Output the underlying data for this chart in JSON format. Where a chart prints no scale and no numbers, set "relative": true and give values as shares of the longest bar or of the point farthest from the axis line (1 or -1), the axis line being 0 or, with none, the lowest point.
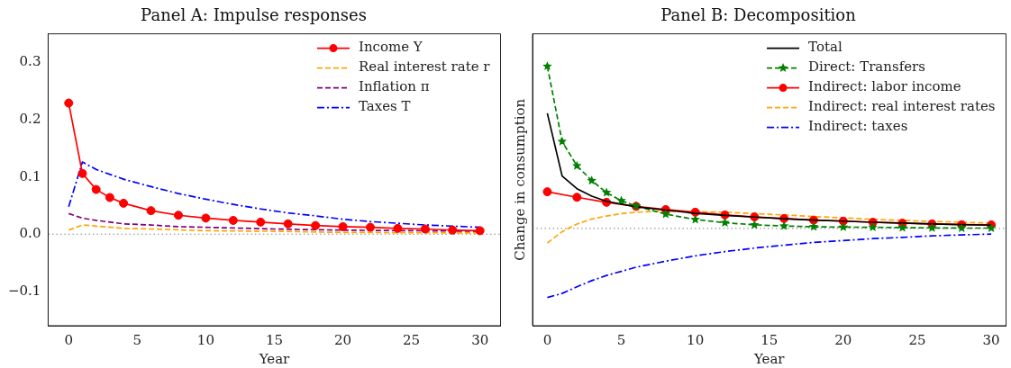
{
  "chart_data": [
    {
      "type": "line",
      "title": "Panel A: Impulse responses",
      "xlabel": "Year",
      "xlim": [
        -1.5,
        31.5
      ],
      "xticks": [
        0,
        5,
        10,
        15,
        20,
        25,
        30
      ],
      "ylim": [
        -0.16,
        0.35
      ],
      "yticks": [
        -0.1,
        {
          "value": 0,
          "label": "0.0"
        },
        0.1,
        0.2,
        0.3
      ],
      "grid": false,
      "legend": "top right",
      "ref_lines": [
        {
          "axis": "y",
          "value": 0,
          "color": "#808080",
          "line_style": "dotted"
        }
      ],
      "series": [
        {
          "name": "Income Y",
          "color": "#ff0000",
          "marker": "circle",
          "line_style": "solid",
          "x": [
            0,
            1,
            2,
            3,
            4,
            6,
            8,
            10,
            12,
            14,
            16,
            18,
            20,
            22,
            24,
            26,
            28,
            30
          ],
          "values": [
            0.229,
            0.106,
            0.078,
            0.064,
            0.054,
            0.041,
            0.033,
            0.028,
            0.024,
            0.021,
            0.018,
            0.015,
            0.013,
            0.012,
            0.01,
            0.009,
            0.007,
            0.006
          ]
        },
        {
          "name": "Real interest rate r",
          "color": "#ffa500",
          "marker": "none",
          "line_style": "dashed",
          "x": [
            0,
            1,
            2,
            4,
            6,
            10,
            15,
            20,
            30
          ],
          "values": [
            0.007,
            0.016,
            0.014,
            0.01,
            0.009,
            0.006,
            0.005,
            0.003,
            0.002
          ]
        },
        {
          "name": "Inflation π",
          "color": "#800080",
          "marker": "none",
          "line_style": "dashed",
          "x": [
            0,
            1,
            2,
            4,
            6,
            8,
            10,
            15,
            20,
            25,
            30
          ],
          "values": [
            0.036,
            0.028,
            0.024,
            0.018,
            0.016,
            0.013,
            0.012,
            0.009,
            0.007,
            0.006,
            0.005
          ]
        },
        {
          "name": "Taxes T",
          "color": "#0000ff",
          "marker": "none",
          "line_style": "dashdot",
          "x": [
            0,
            1,
            2,
            4,
            6,
            8,
            10,
            12,
            14,
            16,
            18,
            20,
            22,
            24,
            26,
            28,
            30
          ],
          "values": [
            0.048,
            0.126,
            0.113,
            0.096,
            0.083,
            0.071,
            0.061,
            0.052,
            0.044,
            0.037,
            0.032,
            0.026,
            0.022,
            0.019,
            0.016,
            0.014,
            0.012
          ]
        }
      ]
    },
    {
      "type": "line",
      "title": "Panel B: Decomposition",
      "xlabel": "Year",
      "ylabel": "Change in consumption",
      "relative": true,
      "xlim": [
        -1,
        31
      ],
      "xticks": [
        0,
        5,
        10,
        15,
        20,
        25,
        30
      ],
      "grid": false,
      "legend": "top right",
      "ref_lines": [
        {
          "axis": "y",
          "value": 0,
          "color": "#808080",
          "line_style": "dotted"
        }
      ],
      "series": [
        {
          "name": "Total",
          "color": "#000000",
          "marker": "none",
          "line_style": "solid",
          "x": [
            0,
            1,
            2,
            3,
            4,
            6,
            8,
            10,
            12,
            14,
            16,
            18,
            20,
            22,
            24,
            26,
            28,
            30
          ],
          "values": [
            0.71,
            0.323,
            0.245,
            0.199,
            0.167,
            0.133,
            0.113,
            0.093,
            0.08,
            0.07,
            0.06,
            0.051,
            0.045,
            0.038,
            0.033,
            0.028,
            0.023,
            0.02
          ]
        },
        {
          "name": "Direct: Transfers",
          "color": "#008000",
          "marker": "star",
          "line_style": "dashed",
          "x": [
            0,
            1,
            2,
            3,
            4,
            5,
            6,
            8,
            10,
            12,
            14,
            16,
            18,
            20,
            22,
            24,
            26,
            28,
            30
          ],
          "values": [
            1.0,
            0.536,
            0.386,
            0.295,
            0.221,
            0.171,
            0.138,
            0.088,
            0.055,
            0.035,
            0.022,
            0.015,
            0.01,
            0.008,
            0.007,
            0.005,
            0.003,
            0.002,
            0.002
          ]
        },
        {
          "name": "Indirect: labor income",
          "color": "#ff0000",
          "marker": "circle",
          "line_style": "solid",
          "x": [
            0,
            2,
            4,
            6,
            8,
            10,
            12,
            14,
            16,
            18,
            20,
            22,
            24,
            26,
            28,
            30
          ],
          "values": [
            0.226,
            0.192,
            0.161,
            0.136,
            0.116,
            0.1,
            0.083,
            0.071,
            0.061,
            0.051,
            0.045,
            0.038,
            0.032,
            0.028,
            0.023,
            0.022
          ]
        },
        {
          "name": "Indirect: real interest rates",
          "color": "#ffa500",
          "marker": "none",
          "line_style": "dashed",
          "x": [
            0,
            1,
            2,
            3,
            4,
            5,
            6,
            7,
            8,
            10,
            12,
            14,
            16,
            18,
            20,
            22,
            24,
            26,
            28,
            30
          ],
          "values": [
            -0.09,
            -0.02,
            0.027,
            0.058,
            0.076,
            0.091,
            0.1,
            0.104,
            0.106,
            0.103,
            0.1,
            0.091,
            0.083,
            0.073,
            0.065,
            0.056,
            0.05,
            0.043,
            0.038,
            0.033
          ]
        },
        {
          "name": "Indirect: taxes",
          "color": "#0000ff",
          "marker": "none",
          "line_style": "dashdot",
          "x": [
            0,
            1,
            2,
            3,
            4,
            5,
            6,
            8,
            10,
            12,
            14,
            16,
            18,
            20,
            22,
            24,
            26,
            28,
            30
          ],
          "values": [
            -0.426,
            -0.401,
            -0.36,
            -0.322,
            -0.29,
            -0.265,
            -0.239,
            -0.202,
            -0.169,
            -0.143,
            -0.121,
            -0.103,
            -0.086,
            -0.075,
            -0.063,
            -0.055,
            -0.046,
            -0.04,
            -0.035
          ]
        }
      ]
    }
  ]
}
